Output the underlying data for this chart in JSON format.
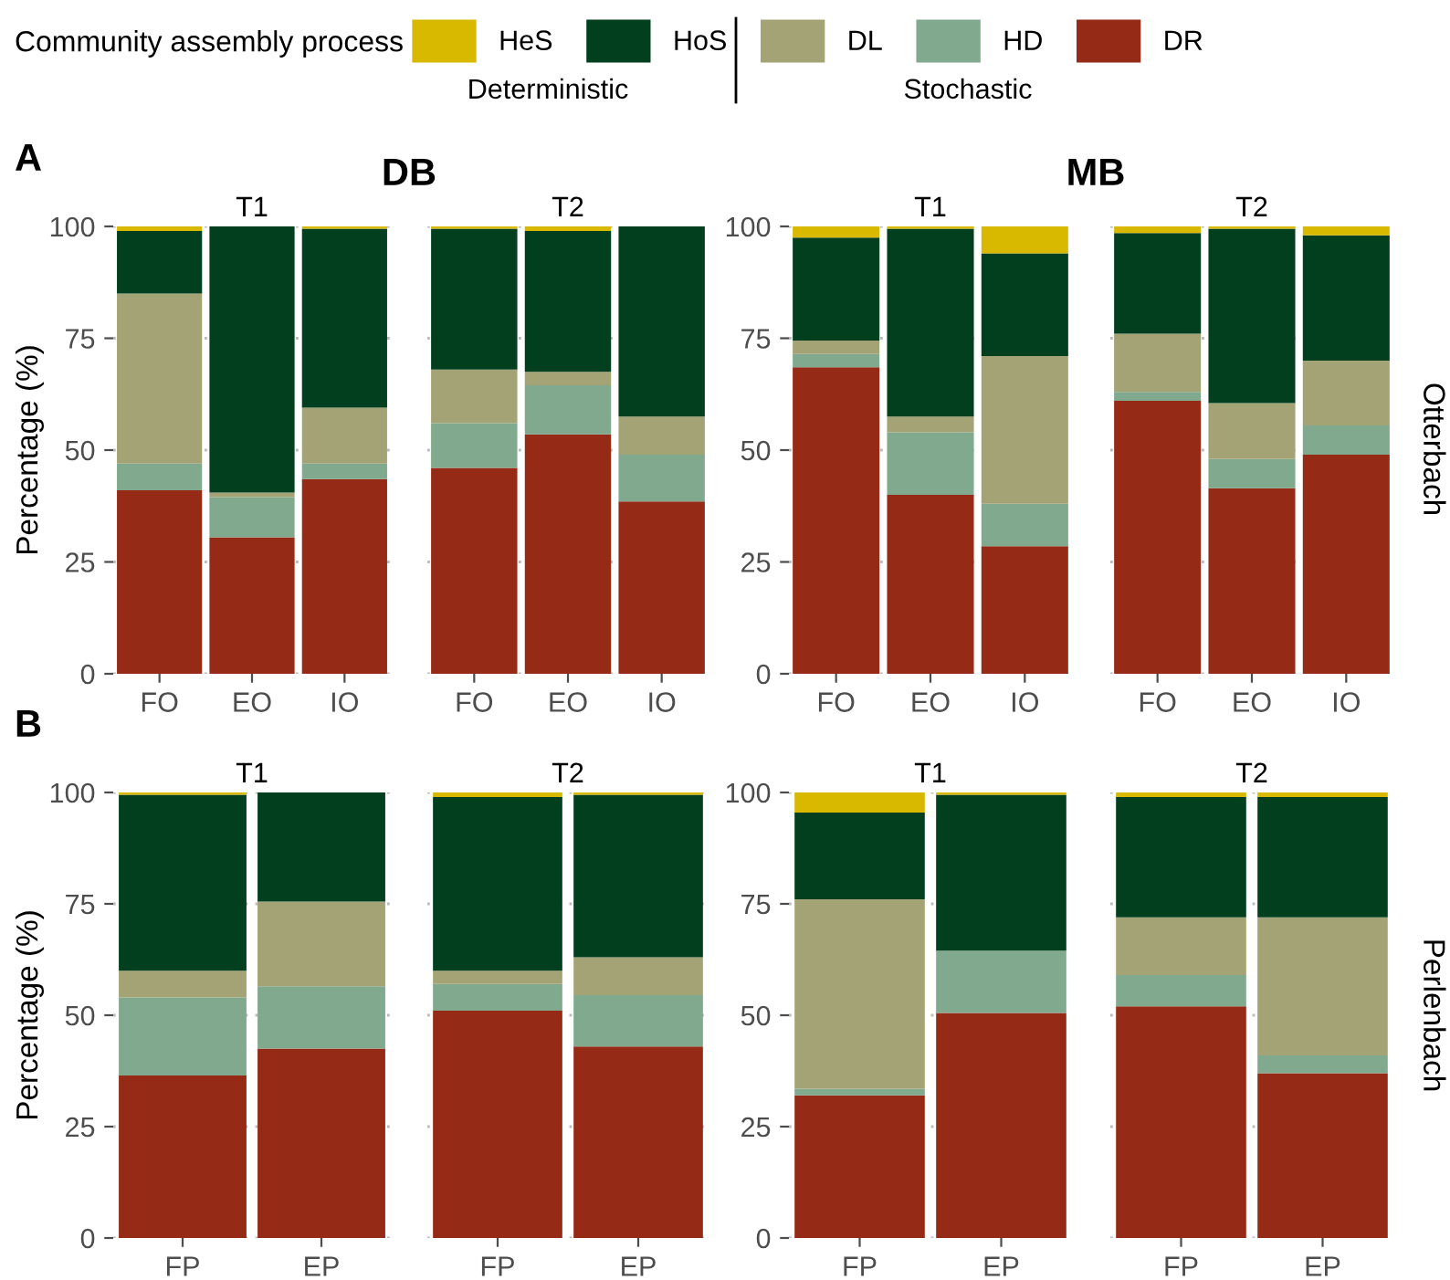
{
  "chart_data": [
    {
      "type": "bar",
      "stacked": true,
      "title": "T1",
      "ylabel": "Percentage (%)",
      "legend_title": "Community assembly process",
      "legend": "top",
      "annotations": [
        "A",
        "DB",
        "Deterministic",
        "Stochastic"
      ],
      "categories": [
        "FO",
        "EO",
        "IO"
      ],
      "ylim": [
        0,
        100
      ],
      "yticks": [
        0,
        25,
        50,
        75,
        100
      ],
      "grid": "y",
      "series": [
        {
          "name": "DR",
          "color": "#952b16",
          "values": [
            41,
            30.5,
            43.5
          ]
        },
        {
          "name": "HD",
          "color": "#80a98d",
          "values": [
            6,
            9,
            3.5
          ]
        },
        {
          "name": "DL",
          "color": "#a3a375",
          "values": [
            38,
            1,
            12.5
          ]
        },
        {
          "name": "HoS",
          "color": "#023f1e",
          "values": [
            14,
            59.5,
            40
          ]
        },
        {
          "name": "HeS",
          "color": "#d9b800",
          "values": [
            1,
            0,
            0.5
          ]
        }
      ]
    },
    {
      "type": "bar",
      "stacked": true,
      "title": "T2",
      "tick_labels": "x",
      "categories": [
        "FO",
        "EO",
        "IO"
      ],
      "ylim": [
        0,
        100
      ],
      "yticks": [
        0,
        25,
        50,
        75,
        100
      ],
      "grid": "y",
      "series": [
        {
          "color": "#952b16",
          "values": [
            46,
            53.5,
            38.5
          ]
        },
        {
          "color": "#80a98d",
          "values": [
            10,
            11,
            10.5
          ]
        },
        {
          "color": "#a3a375",
          "values": [
            12,
            3,
            8.5
          ]
        },
        {
          "color": "#023f1e",
          "values": [
            31.5,
            31.5,
            42.5
          ]
        },
        {
          "color": "#d9b800",
          "values": [
            0.5,
            1,
            0
          ]
        }
      ]
    },
    {
      "type": "bar",
      "stacked": true,
      "title": "T1",
      "annotations": [
        "MB"
      ],
      "categories": [
        "FO",
        "EO",
        "IO"
      ],
      "ylim": [
        0,
        100
      ],
      "yticks": [
        0,
        25,
        50,
        75,
        100
      ],
      "grid": "y",
      "series": [
        {
          "color": "#952b16",
          "values": [
            68.5,
            40,
            28.5
          ]
        },
        {
          "color": "#80a98d",
          "values": [
            3,
            14,
            9.5
          ]
        },
        {
          "color": "#a3a375",
          "values": [
            3,
            3.5,
            33
          ]
        },
        {
          "color": "#023f1e",
          "values": [
            23,
            42,
            23
          ]
        },
        {
          "color": "#d9b800",
          "values": [
            2.5,
            0.5,
            6
          ]
        }
      ]
    },
    {
      "type": "bar",
      "stacked": true,
      "title": "T2",
      "tick_labels": "x",
      "annotations": [
        "Otterbach"
      ],
      "categories": [
        "FO",
        "EO",
        "IO"
      ],
      "ylim": [
        0,
        100
      ],
      "yticks": [
        0,
        25,
        50,
        75,
        100
      ],
      "grid": "y",
      "series": [
        {
          "color": "#952b16",
          "values": [
            61,
            41.5,
            49
          ]
        },
        {
          "color": "#80a98d",
          "values": [
            2,
            6.5,
            6.5
          ]
        },
        {
          "color": "#a3a375",
          "values": [
            13,
            12.5,
            14.5
          ]
        },
        {
          "color": "#023f1e",
          "values": [
            22.5,
            39,
            28
          ]
        },
        {
          "color": "#d9b800",
          "values": [
            1.5,
            0.5,
            2
          ]
        }
      ]
    },
    {
      "type": "bar",
      "stacked": true,
      "title": "T1",
      "ylabel": "Percentage (%)",
      "annotations": [
        "B"
      ],
      "categories": [
        "FP",
        "EP"
      ],
      "ylim": [
        0,
        100
      ],
      "yticks": [
        0,
        25,
        50,
        75,
        100
      ],
      "grid": "y",
      "series": [
        {
          "color": "#952b16",
          "values": [
            36.5,
            42.5
          ]
        },
        {
          "color": "#80a98d",
          "values": [
            17.5,
            14
          ]
        },
        {
          "color": "#a3a375",
          "values": [
            6,
            19
          ]
        },
        {
          "color": "#023f1e",
          "values": [
            39.5,
            24.5
          ]
        },
        {
          "color": "#d9b800",
          "values": [
            0.5,
            0
          ]
        }
      ]
    },
    {
      "type": "bar",
      "stacked": true,
      "title": "T2",
      "tick_labels": "x",
      "categories": [
        "FP",
        "EP"
      ],
      "ylim": [
        0,
        100
      ],
      "yticks": [
        0,
        25,
        50,
        75,
        100
      ],
      "grid": "y",
      "series": [
        {
          "color": "#952b16",
          "values": [
            51,
            43
          ]
        },
        {
          "color": "#80a98d",
          "values": [
            6,
            11.5
          ]
        },
        {
          "color": "#a3a375",
          "values": [
            3,
            8.5
          ]
        },
        {
          "color": "#023f1e",
          "values": [
            39,
            36.5
          ]
        },
        {
          "color": "#d9b800",
          "values": [
            1,
            0.5
          ]
        }
      ]
    },
    {
      "type": "bar",
      "stacked": true,
      "title": "T1",
      "categories": [
        "FP",
        "EP"
      ],
      "ylim": [
        0,
        100
      ],
      "yticks": [
        0,
        25,
        50,
        75,
        100
      ],
      "grid": "y",
      "series": [
        {
          "color": "#952b16",
          "values": [
            32,
            50.5
          ]
        },
        {
          "color": "#80a98d",
          "values": [
            1.5,
            14
          ]
        },
        {
          "color": "#a3a375",
          "values": [
            42.5,
            0
          ]
        },
        {
          "color": "#023f1e",
          "values": [
            19.5,
            35
          ]
        },
        {
          "color": "#d9b800",
          "values": [
            4.5,
            0.5
          ]
        }
      ]
    },
    {
      "type": "bar",
      "stacked": true,
      "title": "T2",
      "tick_labels": "x",
      "annotations": [
        "Perlenbach"
      ],
      "categories": [
        "FP",
        "EP"
      ],
      "ylim": [
        0,
        100
      ],
      "yticks": [
        0,
        25,
        50,
        75,
        100
      ],
      "grid": "y",
      "series": [
        {
          "color": "#952b16",
          "values": [
            52,
            37
          ]
        },
        {
          "color": "#80a98d",
          "values": [
            7,
            4
          ]
        },
        {
          "color": "#a3a375",
          "values": [
            13,
            31
          ]
        },
        {
          "color": "#023f1e",
          "values": [
            27,
            27
          ]
        },
        {
          "color": "#d9b800",
          "values": [
            1,
            1
          ]
        }
      ]
    }
  ]
}
